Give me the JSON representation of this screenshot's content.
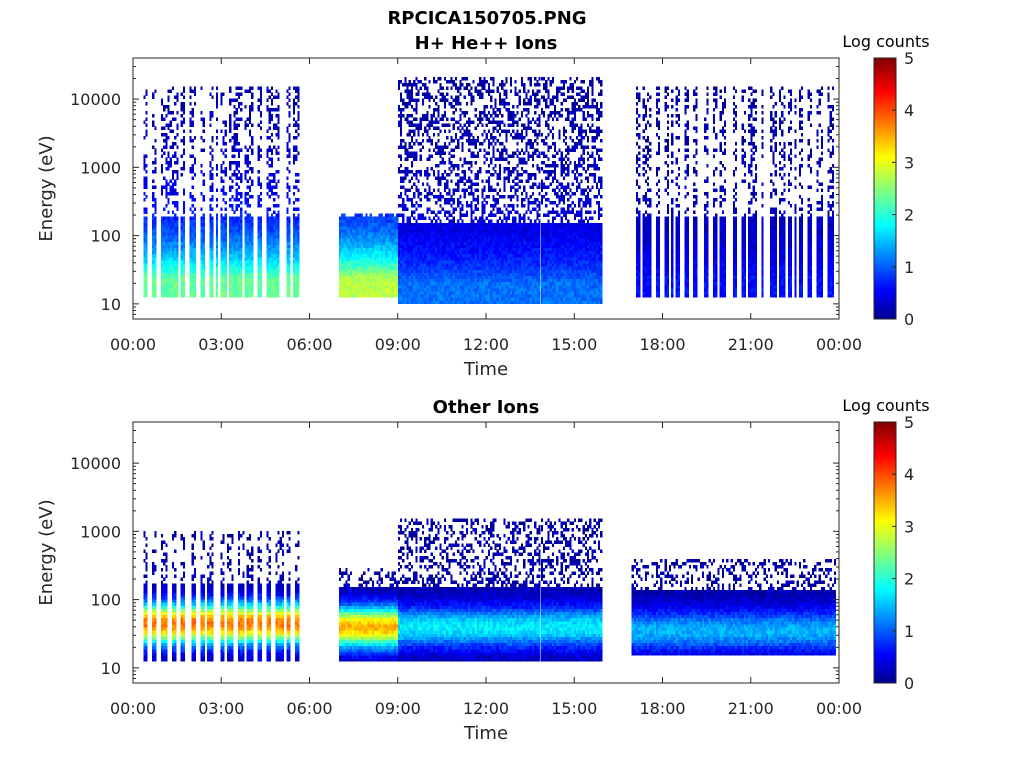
{
  "figure": {
    "title_line1": "RPCICA150705.PNG"
  },
  "chart_data": [
    {
      "type": "heatmap",
      "title": "H+ He++ Ions",
      "xlabel": "Time",
      "ylabel": "Energy (eV)",
      "x_ticks": [
        "00:00",
        "03:00",
        "06:00",
        "09:00",
        "12:00",
        "15:00",
        "18:00",
        "21:00",
        "00:00"
      ],
      "y_ticks": [
        "10",
        "100",
        "1000",
        "10000"
      ],
      "y_scale": "log",
      "ylim": [
        6,
        40000
      ],
      "xlim_hours": [
        0,
        24
      ],
      "colorbar": {
        "label": "Log counts",
        "range": [
          0,
          5
        ],
        "ticks": [
          "0",
          "1",
          "2",
          "3",
          "4",
          "5"
        ],
        "colormap": "jet"
      },
      "data_segments_hours": [
        [
          0.2,
          5.65
        ],
        [
          7.0,
          15.95
        ],
        [
          16.95,
          23.9
        ]
      ],
      "features": [
        {
          "t_range": [
            0.2,
            5.65
          ],
          "peak_log_counts": 2.2,
          "energy_range": [
            12,
            15000
          ],
          "note": "periodic vertical sweeps"
        },
        {
          "t_range": [
            7.0,
            9.0
          ],
          "peak_log_counts": 2.6,
          "energy_range": [
            12,
            200
          ]
        },
        {
          "t_range": [
            9.0,
            15.95
          ],
          "peak_log_counts": 1.0,
          "energy_range": [
            10,
            20000
          ]
        },
        {
          "t_range": [
            16.95,
            23.9
          ],
          "peak_log_counts": 0.5,
          "energy_range": [
            12,
            15000
          ]
        }
      ]
    },
    {
      "type": "heatmap",
      "title": "Other Ions",
      "xlabel": "Time",
      "ylabel": "Energy (eV)",
      "x_ticks": [
        "00:00",
        "03:00",
        "06:00",
        "09:00",
        "12:00",
        "15:00",
        "18:00",
        "21:00",
        "00:00"
      ],
      "y_ticks": [
        "10",
        "100",
        "1000",
        "10000"
      ],
      "y_scale": "log",
      "ylim": [
        6,
        40000
      ],
      "xlim_hours": [
        0,
        24
      ],
      "colorbar": {
        "label": "Log counts",
        "range": [
          0,
          5
        ],
        "ticks": [
          "0",
          "1",
          "2",
          "3",
          "4",
          "5"
        ],
        "colormap": "jet"
      },
      "data_segments_hours": [
        [
          0.2,
          5.65
        ],
        [
          7.0,
          15.95
        ],
        [
          16.95,
          23.9
        ]
      ],
      "features": [
        {
          "t_range": [
            0.2,
            5.65
          ],
          "peak_log_counts": 3.6,
          "energy_range": [
            12,
            1000
          ],
          "band_center_eV": 45
        },
        {
          "t_range": [
            7.0,
            9.0
          ],
          "peak_log_counts": 3.3,
          "energy_range": [
            12,
            300
          ],
          "band_center_eV": 40
        },
        {
          "t_range": [
            9.0,
            15.95
          ],
          "peak_log_counts": 1.6,
          "energy_range": [
            12,
            1500
          ],
          "band_center_eV": 40
        },
        {
          "t_range": [
            16.95,
            23.9
          ],
          "peak_log_counts": 1.3,
          "energy_range": [
            15,
            400
          ],
          "band_center_eV": 35
        }
      ]
    }
  ]
}
